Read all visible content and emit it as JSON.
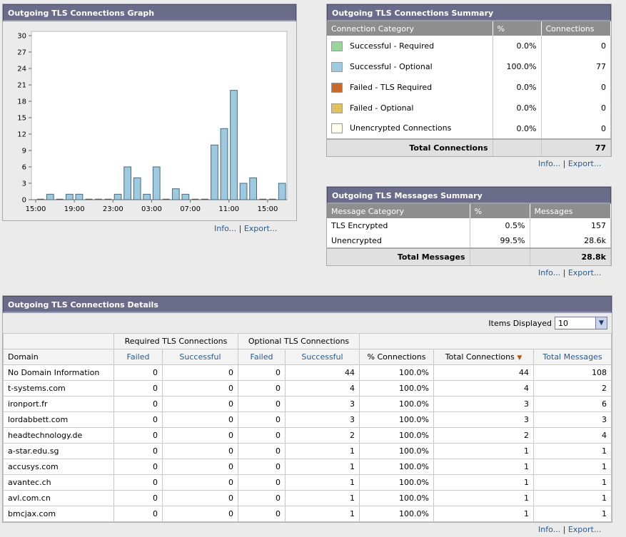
{
  "graph": {
    "title": "Outgoing TLS Connections Graph",
    "links": {
      "info": "Info...",
      "sep": "|",
      "export": "Export..."
    }
  },
  "chart_data": {
    "type": "bar",
    "x_tick_labels": [
      "15:00",
      "19:00",
      "23:00",
      "03:00",
      "07:00",
      "11:00",
      "15:00"
    ],
    "values": [
      0,
      1,
      0,
      1,
      1,
      0,
      0,
      0,
      1,
      6,
      4,
      1,
      6,
      0,
      2,
      1,
      0,
      0,
      10,
      13,
      20,
      3,
      4,
      0,
      0,
      3
    ],
    "ylim": [
      0,
      30
    ],
    "yticks": [
      0,
      3,
      6,
      9,
      12,
      15,
      18,
      21,
      24,
      27,
      30
    ],
    "bar_color": "#9ecae1",
    "grid": false
  },
  "conn_summary": {
    "title": "Outgoing TLS Connections Summary",
    "headers": [
      "Connection Category",
      "%",
      "Connections"
    ],
    "rows": [
      {
        "label": "Successful - Required",
        "pct": "0.0%",
        "count": "0",
        "color": "#99d699"
      },
      {
        "label": "Successful - Optional",
        "pct": "100.0%",
        "count": "77",
        "color": "#9ecae1"
      },
      {
        "label": "Failed - TLS Required",
        "pct": "0.0%",
        "count": "0",
        "color": "#c8692a"
      },
      {
        "label": "Failed - Optional",
        "pct": "0.0%",
        "count": "0",
        "color": "#e0c060"
      },
      {
        "label": "Unencrypted Connections",
        "pct": "0.0%",
        "count": "0",
        "color": "#fffff0"
      }
    ],
    "total_label": "Total Connections",
    "total_value": "77",
    "links": {
      "info": "Info...",
      "sep": "|",
      "export": "Export..."
    }
  },
  "msg_summary": {
    "title": "Outgoing TLS Messages Summary",
    "headers": [
      "Message Category",
      "%",
      "Messages"
    ],
    "rows": [
      {
        "label": "TLS Encrypted",
        "pct": "0.5%",
        "count": "157"
      },
      {
        "label": "Unencrypted",
        "pct": "99.5%",
        "count": "28.6k"
      }
    ],
    "total_label": "Total Messages",
    "total_value": "28.8k",
    "links": {
      "info": "Info...",
      "sep": "|",
      "export": "Export..."
    }
  },
  "details": {
    "title": "Outgoing TLS Connections Details",
    "items_label": "Items Displayed",
    "items_value": "10",
    "group_required": "Required TLS Connections",
    "group_optional": "Optional TLS Connections",
    "columns": [
      "Domain",
      "Failed",
      "Successful",
      "Failed",
      "Successful",
      "% Connections",
      "Total Connections",
      "Total Messages"
    ],
    "rows": [
      [
        "No Domain Information",
        "0",
        "0",
        "0",
        "44",
        "100.0%",
        "44",
        "108"
      ],
      [
        "t-systems.com",
        "0",
        "0",
        "0",
        "4",
        "100.0%",
        "4",
        "2"
      ],
      [
        "ironport.fr",
        "0",
        "0",
        "0",
        "3",
        "100.0%",
        "3",
        "6"
      ],
      [
        "lordabbett.com",
        "0",
        "0",
        "0",
        "3",
        "100.0%",
        "3",
        "3"
      ],
      [
        "headtechnology.de",
        "0",
        "0",
        "0",
        "2",
        "100.0%",
        "2",
        "4"
      ],
      [
        "a-star.edu.sg",
        "0",
        "0",
        "0",
        "1",
        "100.0%",
        "1",
        "1"
      ],
      [
        "accusys.com",
        "0",
        "0",
        "0",
        "1",
        "100.0%",
        "1",
        "1"
      ],
      [
        "avantec.ch",
        "0",
        "0",
        "0",
        "1",
        "100.0%",
        "1",
        "1"
      ],
      [
        "avl.com.cn",
        "0",
        "0",
        "0",
        "1",
        "100.0%",
        "1",
        "1"
      ],
      [
        "bmcjax.com",
        "0",
        "0",
        "0",
        "1",
        "100.0%",
        "1",
        "1"
      ]
    ],
    "links": {
      "info": "Info...",
      "sep": "|",
      "export": "Export..."
    }
  }
}
